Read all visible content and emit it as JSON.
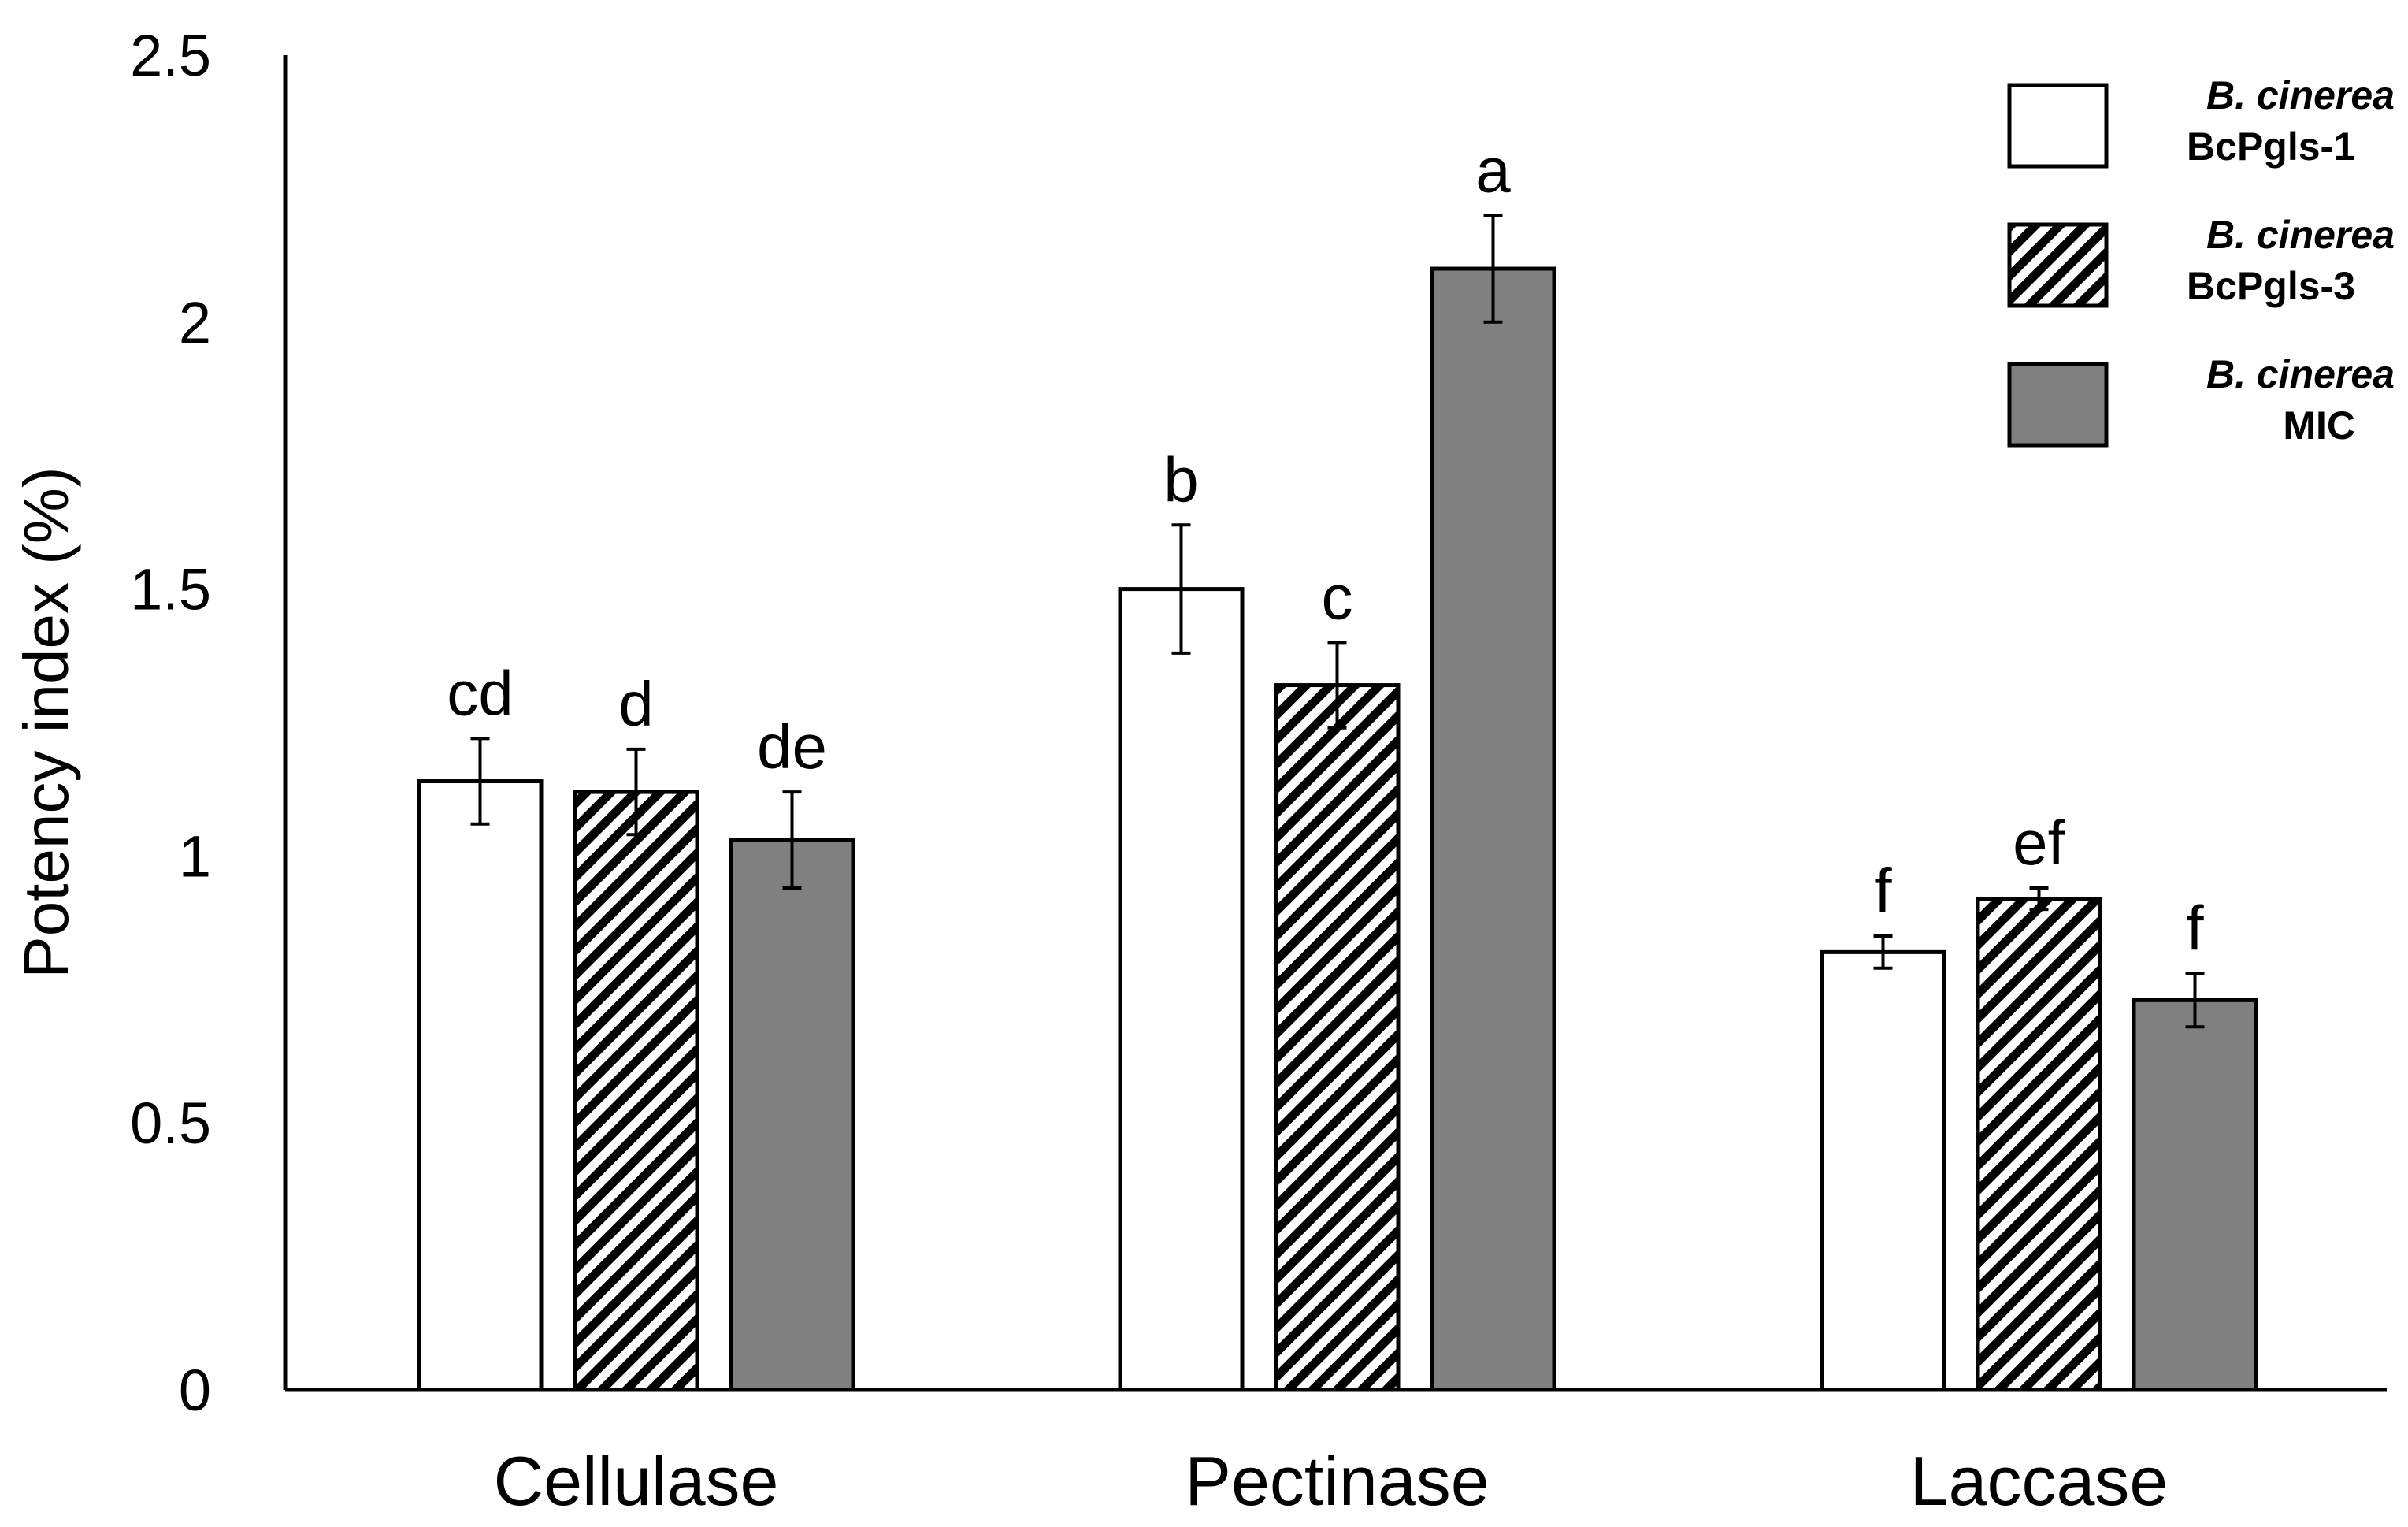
{
  "chart_data": {
    "type": "bar",
    "title": "",
    "xlabel": "",
    "ylabel": "Potency index (%)",
    "ylim": [
      0,
      2.5
    ],
    "yticks": [
      "0",
      "0.5",
      "1",
      "1.5",
      "2",
      "2.5"
    ],
    "ytick_values": [
      0,
      0.5,
      1,
      1.5,
      2,
      2.5
    ],
    "grid": false,
    "legend_position": "top-right",
    "categories": [
      "Cellulase",
      "Pectinase",
      "Laccase"
    ],
    "series": [
      {
        "name_species": "B. cinerea",
        "name_strain": "BcPgls-1",
        "fill": "#ffffff",
        "pattern": "none",
        "values": [
          1.14,
          1.5,
          0.82
        ],
        "errors": [
          0.08,
          0.12,
          0.03
        ],
        "sig_letters": [
          "cd",
          "b",
          "f"
        ]
      },
      {
        "name_species": "B. cinerea",
        "name_strain": "BcPgls-3",
        "fill": "#ffffff",
        "pattern": "diagonal-hatch",
        "values": [
          1.12,
          1.32,
          0.92
        ],
        "errors": [
          0.08,
          0.08,
          0.02
        ],
        "sig_letters": [
          "d",
          "c",
          "ef"
        ]
      },
      {
        "name_species": "B. cinerea",
        "name_strain": "MIC",
        "fill": "#808080",
        "pattern": "none",
        "values": [
          1.03,
          2.1,
          0.73
        ],
        "errors": [
          0.09,
          0.1,
          0.05
        ],
        "sig_letters": [
          "de",
          "a",
          "f"
        ]
      }
    ]
  }
}
